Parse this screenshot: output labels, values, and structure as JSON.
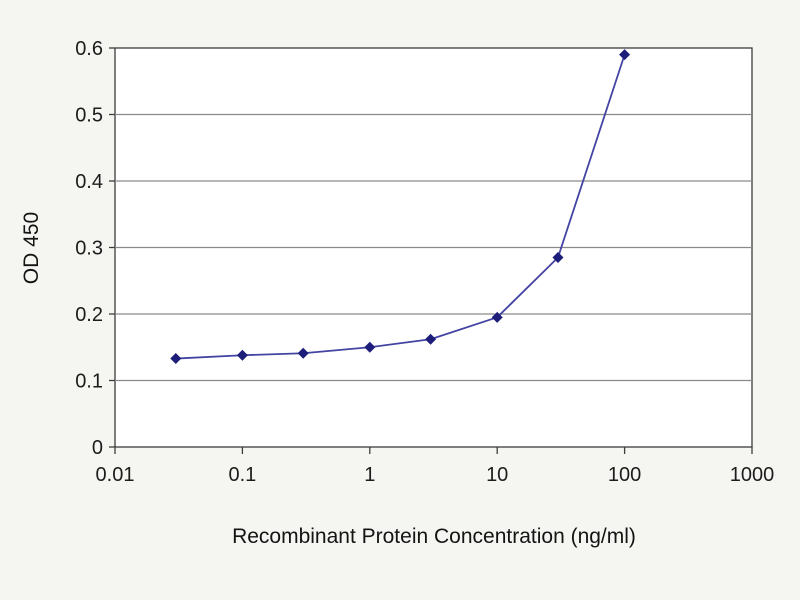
{
  "chart_data": {
    "type": "line",
    "title": "",
    "xlabel": "Recombinant Protein Concentration (ng/ml)",
    "ylabel": "OD 450",
    "xscale": "log",
    "xlim": [
      0.01,
      1000
    ],
    "ylim": [
      0,
      0.6
    ],
    "x": [
      0.03,
      0.1,
      0.3,
      1,
      3,
      10,
      30,
      100
    ],
    "y": [
      0.133,
      0.138,
      0.141,
      0.15,
      0.162,
      0.195,
      0.285,
      0.59
    ],
    "x_ticks": [
      "0.01",
      "0.1",
      "1",
      "10",
      "100",
      "1000"
    ],
    "x_tick_values": [
      0.01,
      0.1,
      1,
      10,
      100,
      1000
    ],
    "y_ticks": [
      "0",
      "0.1",
      "0.2",
      "0.3",
      "0.4",
      "0.5",
      "0.6"
    ],
    "y_tick_values": [
      0,
      0.1,
      0.2,
      0.3,
      0.4,
      0.5,
      0.6
    ],
    "grid": "horizontal",
    "legend": "none",
    "marker": "diamond",
    "colors": {
      "page_bg": "#f5f5f2",
      "plot_bg": "#ffffff",
      "grid_color": "#8a8a8a",
      "axis_color": "#3c3c3c",
      "line_color": "#4444a3",
      "marker_color": "#1d1d7a"
    }
  }
}
